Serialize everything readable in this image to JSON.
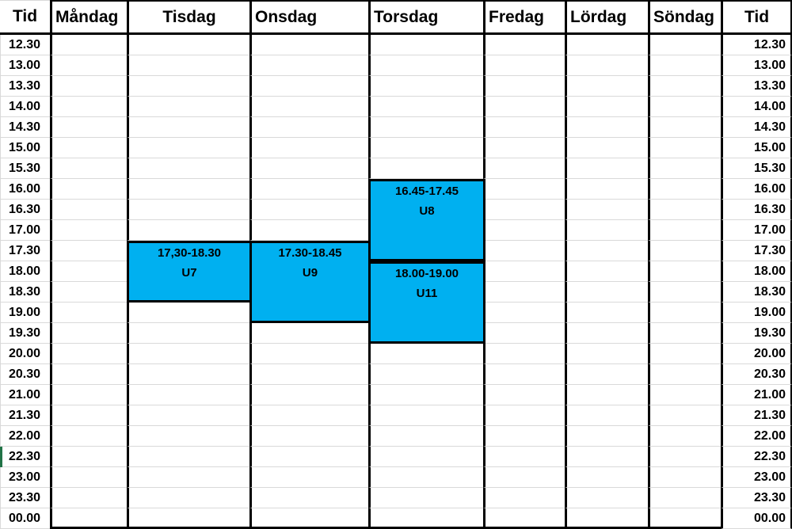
{
  "colors": {
    "event_fill": "#00b0f0",
    "grid_line": "#d9d9d9",
    "border": "#000000",
    "selection_accent": "#217346"
  },
  "table": {
    "headers": [
      "Tid",
      "Måndag",
      "Tisdag",
      "Onsdag",
      "Torsdag",
      "Fredag",
      "Lördag",
      "Söndag",
      "Tid"
    ],
    "day_headers": [
      "Måndag",
      "Tisdag",
      "Onsdag",
      "Torsdag",
      "Fredag",
      "Lördag",
      "Söndag"
    ],
    "time_rows": [
      "12.30",
      "13.00",
      "13.30",
      "14.00",
      "14.30",
      "15.00",
      "15.30",
      "16.00",
      "16.30",
      "17.00",
      "17.30",
      "18.00",
      "18.30",
      "19.00",
      "19.30",
      "20.00",
      "20.30",
      "21.00",
      "21.30",
      "22.00",
      "22.30",
      "23.00",
      "23.30",
      "00.00"
    ]
  },
  "events": [
    {
      "day": "Tisdag",
      "time_label": "17,30-18.30",
      "code": "U7",
      "start_row": "17.30",
      "rows_spanned": 3
    },
    {
      "day": "Onsdag",
      "time_label": "17.30-18.45",
      "code": "U9",
      "start_row": "17.30",
      "rows_spanned": 4
    },
    {
      "day": "Torsdag",
      "time_label": "16.45-17.45",
      "code": "U8",
      "start_row": "16.00",
      "rows_spanned": 4
    },
    {
      "day": "Torsdag",
      "time_label": "18.00-19.00",
      "code": "U11",
      "start_row": "18.00",
      "rows_spanned": 4
    }
  ],
  "selection": {
    "accent_row": "22.30"
  }
}
